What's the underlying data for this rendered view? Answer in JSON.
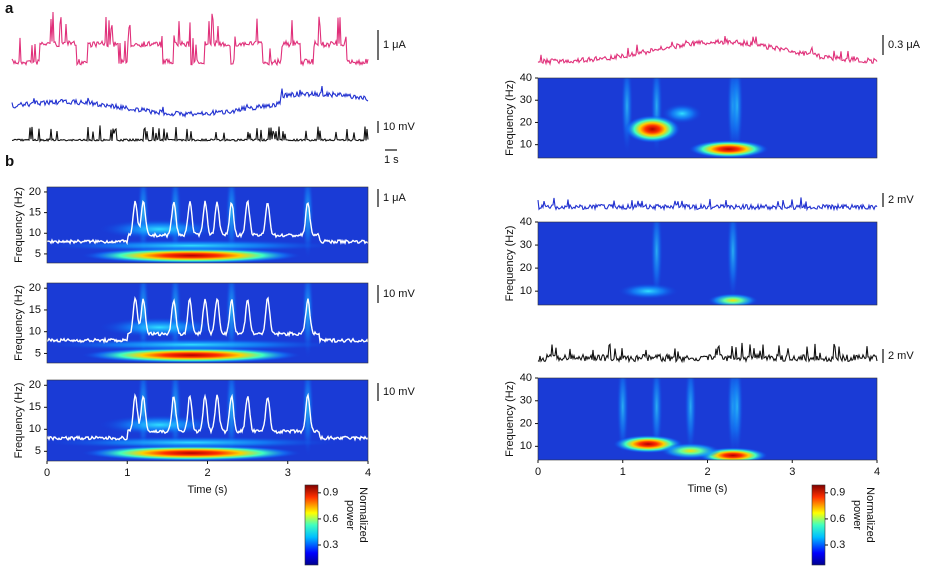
{
  "panel_labels": [
    "a",
    "b"
  ],
  "scale_bars": [
    "1 μA",
    "10 mV",
    "1 s",
    "1 μA",
    "10 mV",
    "10 mV",
    "0.3 μA",
    "2 mV",
    "2 mV"
  ],
  "left": {
    "y_label": "Frequency (Hz)",
    "x_label": "Time (s)",
    "yticks": [
      5,
      10,
      15,
      20
    ],
    "ylim": [
      2.8,
      21.2
    ],
    "xticks": [
      0,
      1,
      2,
      3,
      4
    ],
    "xlim": [
      0,
      4
    ]
  },
  "right": {
    "y_label": "Frequency (Hz)",
    "x_label": "Time (s)",
    "yticks": [
      10,
      20,
      30,
      40
    ],
    "ylim": [
      4,
      40
    ],
    "xticks": [
      0,
      1,
      2,
      3,
      4
    ],
    "xlim": [
      0,
      4
    ]
  },
  "colorbar": {
    "label": [
      "Normalized",
      "power"
    ],
    "ticks": [
      0.3,
      0.6,
      0.9
    ],
    "lim": [
      0.07,
      0.99
    ]
  }
}
